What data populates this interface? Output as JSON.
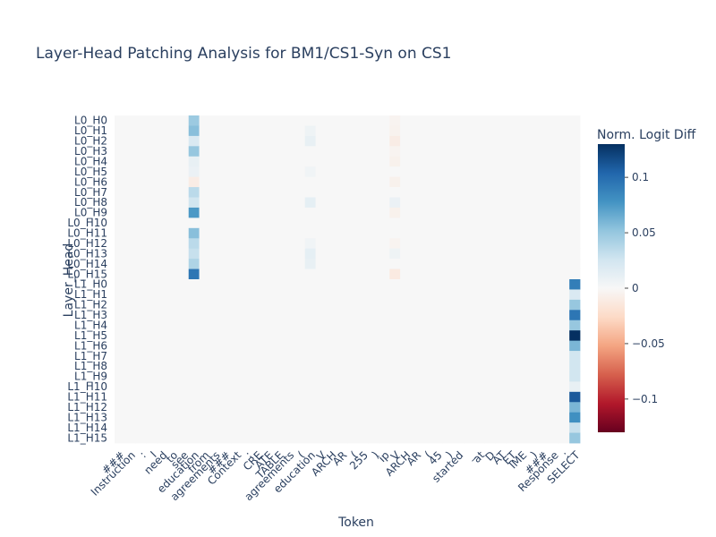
{
  "chart_data": {
    "type": "heatmap",
    "title": "Layer-Head Patching Analysis for BM1/CS1-Syn on CS1",
    "xlabel": "Token",
    "ylabel": "Layer_Head",
    "colorbar": {
      "title": "Norm. Logit Diff",
      "range": [
        -0.13,
        0.13
      ],
      "ticks": [
        0.1,
        0.05,
        0,
        -0.05,
        -0.1
      ],
      "tick_labels": [
        "0.1",
        "0.05",
        "0",
        "−0.05",
        "−0.1"
      ],
      "colorscale": "RdBu"
    },
    "x_tokens": [
      "###",
      "Instruction",
      ":",
      "I",
      "need",
      "to",
      "see",
      "education",
      "from",
      "agreements",
      "###",
      "Context",
      ":",
      "CRE",
      "ATE",
      "TABLE",
      "agreements",
      "(",
      "education",
      "V",
      "ARCH",
      "AR",
      "(",
      "255",
      ")",
      "ip",
      "V",
      "ARCH",
      "AR",
      "(",
      "45",
      ")",
      "started",
      "_",
      "at",
      "D",
      "AT",
      "ET",
      "IME",
      ")",
      "###",
      "Response",
      ":",
      "SELECT"
    ],
    "y_rows": [
      "L0_H0",
      "L0_H1",
      "L0_H2",
      "L0_H3",
      "L0_H4",
      "L0_H5",
      "L0_H6",
      "L0_H7",
      "L0_H8",
      "L0_H9",
      "L0_H10",
      "L0_H11",
      "L0_H12",
      "L0_H13",
      "L0_H14",
      "L0_H15",
      "L1_H0",
      "L1_H1",
      "L1_H2",
      "L1_H3",
      "L1_H4",
      "L1_H5",
      "L1_H6",
      "L1_H7",
      "L1_H8",
      "L1_H9",
      "L1_H10",
      "L1_H11",
      "L1_H12",
      "L1_H13",
      "L1_H14",
      "L1_H15"
    ],
    "nonzero_cells": [
      {
        "row": 0,
        "col": 7,
        "value": 0.048
      },
      {
        "row": 1,
        "col": 7,
        "value": 0.055
      },
      {
        "row": 2,
        "col": 7,
        "value": 0.02
      },
      {
        "row": 3,
        "col": 7,
        "value": 0.05
      },
      {
        "row": 4,
        "col": 7,
        "value": 0.01
      },
      {
        "row": 5,
        "col": 7,
        "value": 0.008
      },
      {
        "row": 6,
        "col": 7,
        "value": -0.01
      },
      {
        "row": 7,
        "col": 7,
        "value": 0.035
      },
      {
        "row": 8,
        "col": 7,
        "value": 0.025
      },
      {
        "row": 9,
        "col": 7,
        "value": 0.075
      },
      {
        "row": 11,
        "col": 7,
        "value": 0.055
      },
      {
        "row": 12,
        "col": 7,
        "value": 0.035
      },
      {
        "row": 13,
        "col": 7,
        "value": 0.03
      },
      {
        "row": 14,
        "col": 7,
        "value": 0.04
      },
      {
        "row": 15,
        "col": 7,
        "value": 0.095
      },
      {
        "row": 1,
        "col": 18,
        "value": 0.006
      },
      {
        "row": 2,
        "col": 18,
        "value": 0.01
      },
      {
        "row": 5,
        "col": 18,
        "value": 0.005
      },
      {
        "row": 8,
        "col": 18,
        "value": 0.012
      },
      {
        "row": 12,
        "col": 18,
        "value": 0.005
      },
      {
        "row": 13,
        "col": 18,
        "value": 0.012
      },
      {
        "row": 14,
        "col": 18,
        "value": 0.01
      },
      {
        "row": 0,
        "col": 26,
        "value": -0.004
      },
      {
        "row": 1,
        "col": 26,
        "value": -0.005
      },
      {
        "row": 2,
        "col": 26,
        "value": -0.01
      },
      {
        "row": 3,
        "col": 26,
        "value": -0.004
      },
      {
        "row": 4,
        "col": 26,
        "value": -0.006
      },
      {
        "row": 6,
        "col": 26,
        "value": -0.006
      },
      {
        "row": 8,
        "col": 26,
        "value": 0.008
      },
      {
        "row": 9,
        "col": 26,
        "value": -0.006
      },
      {
        "row": 12,
        "col": 26,
        "value": -0.004
      },
      {
        "row": 13,
        "col": 26,
        "value": 0.006
      },
      {
        "row": 15,
        "col": 26,
        "value": -0.012
      },
      {
        "row": 16,
        "col": 43,
        "value": 0.09
      },
      {
        "row": 17,
        "col": 43,
        "value": 0.02
      },
      {
        "row": 18,
        "col": 43,
        "value": 0.05
      },
      {
        "row": 19,
        "col": 43,
        "value": 0.095
      },
      {
        "row": 20,
        "col": 43,
        "value": 0.05
      },
      {
        "row": 21,
        "col": 43,
        "value": 0.13
      },
      {
        "row": 22,
        "col": 43,
        "value": 0.06
      },
      {
        "row": 23,
        "col": 43,
        "value": 0.025
      },
      {
        "row": 24,
        "col": 43,
        "value": 0.025
      },
      {
        "row": 25,
        "col": 43,
        "value": 0.025
      },
      {
        "row": 26,
        "col": 43,
        "value": 0.01
      },
      {
        "row": 27,
        "col": 43,
        "value": 0.11
      },
      {
        "row": 28,
        "col": 43,
        "value": 0.06
      },
      {
        "row": 29,
        "col": 43,
        "value": 0.08
      },
      {
        "row": 30,
        "col": 43,
        "value": 0.03
      },
      {
        "row": 31,
        "col": 43,
        "value": 0.05
      }
    ]
  }
}
